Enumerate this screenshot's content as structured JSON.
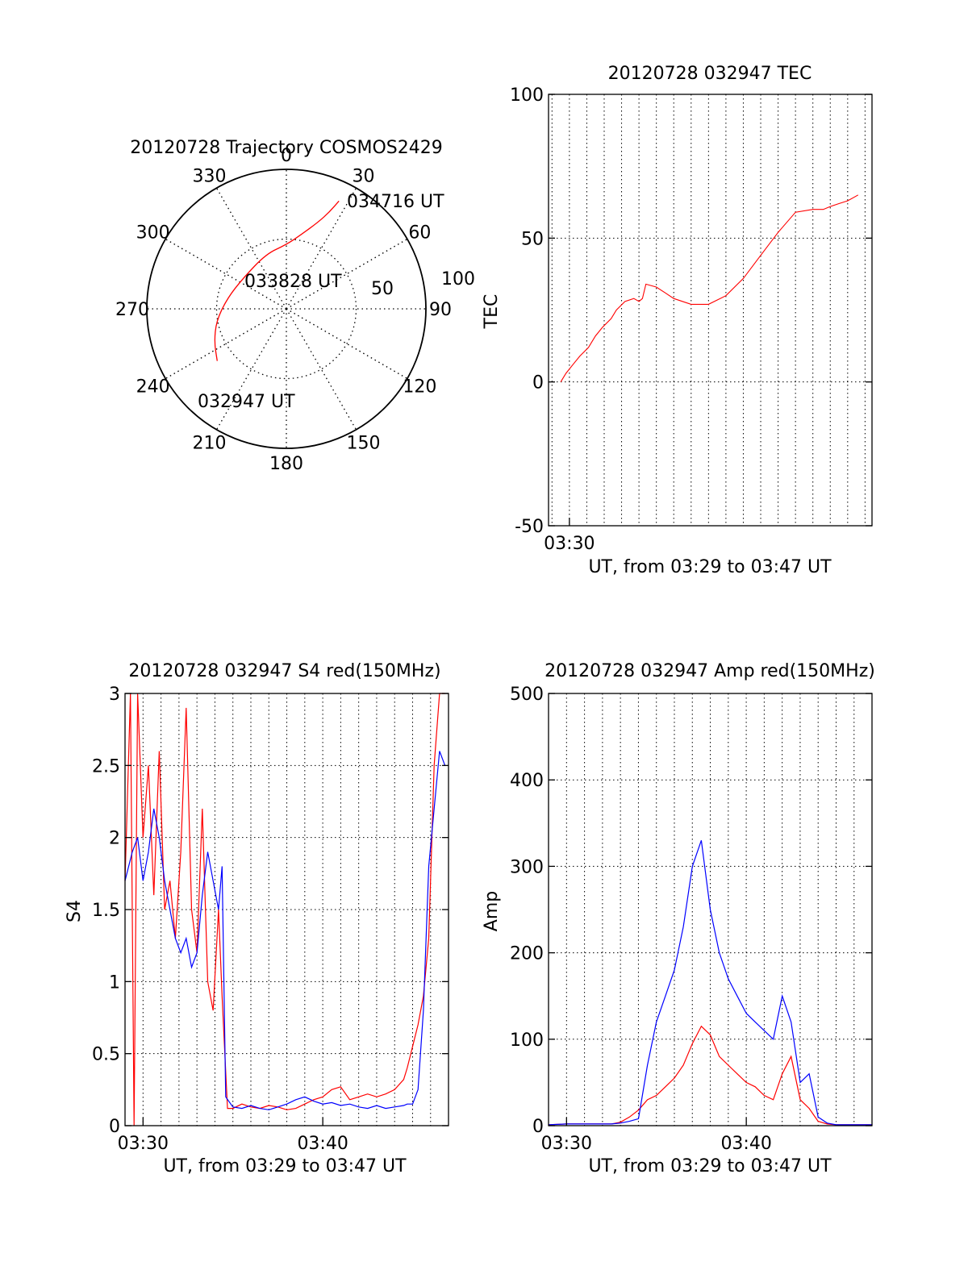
{
  "colors": {
    "red": "#ff0000",
    "blue": "#0000ff",
    "axis": "#000000",
    "grid": "#000000"
  },
  "chart_data": [
    {
      "type": "polar",
      "title": "20120728 Trajectory COSMOS2429",
      "azimuth_ticks": [
        0,
        30,
        60,
        90,
        120,
        150,
        180,
        210,
        240,
        270,
        300,
        330
      ],
      "azimuth_labels": [
        "0",
        "30",
        "60",
        "90",
        "120",
        "150",
        "180",
        "210",
        "240",
        "270",
        "300",
        "330"
      ],
      "radial_labels": [
        "50",
        "100"
      ],
      "radial_ticks": [
        0,
        50,
        100
      ],
      "rmax": 100,
      "trajectory": {
        "points": [
          {
            "az": 233,
            "r": 62
          },
          {
            "az": 245,
            "r": 57
          },
          {
            "az": 260,
            "r": 51
          },
          {
            "az": 280,
            "r": 43
          },
          {
            "az": 305,
            "r": 38
          },
          {
            "az": 340,
            "r": 42
          },
          {
            "az": 360,
            "r": 46
          },
          {
            "az": 372,
            "r": 55
          },
          {
            "az": 380,
            "r": 66
          },
          {
            "az": 384,
            "r": 76
          },
          {
            "az": 386,
            "r": 86
          }
        ],
        "labels": [
          "032947 UT",
          "033828 UT",
          "034716 UT"
        ]
      }
    },
    {
      "type": "line",
      "title": "20120728 032947 TEC",
      "xlabel": "UT, from 03:29 to 03:47 UT",
      "ylabel": "TEC",
      "xlim": [
        3.48,
        3.79
      ],
      "ylim": [
        -50,
        100
      ],
      "yticks": [
        -50,
        0,
        50,
        100
      ],
      "xtick_labels": [
        {
          "x": 3.5,
          "label": "03:30"
        }
      ],
      "grid_x_step_min": 1,
      "series": [
        {
          "color": "red",
          "x": [
            3.4917,
            3.4967,
            3.5033,
            3.51,
            3.5183,
            3.525,
            3.5317,
            3.54,
            3.545,
            3.5533,
            3.5617,
            3.5667,
            3.57,
            3.5733,
            3.5833,
            3.5917,
            3.6,
            3.6083,
            3.6167,
            3.6333,
            3.65,
            3.6667,
            3.6833,
            3.7,
            3.7167,
            3.7333,
            3.7433,
            3.75,
            3.7583,
            3.7667,
            3.7767
          ],
          "y": [
            0,
            3,
            6,
            9,
            12,
            16,
            19,
            22,
            25,
            28,
            29,
            28,
            29,
            34,
            33,
            31,
            29,
            28,
            27,
            27,
            30,
            36,
            44,
            52,
            59,
            60,
            60,
            61,
            62,
            63,
            65
          ]
        }
      ]
    },
    {
      "type": "line",
      "title": "20120728 032947 S4 red(150MHz)",
      "xlabel": "UT, from 03:29 to 03:47 UT",
      "ylabel": "S4",
      "xlim": [
        3.4833,
        3.7833
      ],
      "ylim": [
        0,
        3
      ],
      "yticks": [
        0,
        0.5,
        1,
        1.5,
        2,
        2.5,
        3
      ],
      "ytick_labels": [
        "0",
        "0.5",
        "1",
        "1.5",
        "2",
        "2.5",
        "3"
      ],
      "xtick_labels": [
        {
          "x": 3.5,
          "label": "03:30"
        },
        {
          "x": 3.6667,
          "label": "03:40"
        }
      ],
      "grid_x_step_min": 1,
      "series": [
        {
          "name": "red",
          "color": "red",
          "x": [
            3.4833,
            3.4883,
            3.4917,
            3.495,
            3.5,
            3.505,
            3.51,
            3.515,
            3.52,
            3.525,
            3.53,
            3.535,
            3.54,
            3.545,
            3.55,
            3.555,
            3.56,
            3.565,
            3.57,
            3.5733,
            3.5783,
            3.5833,
            3.5917,
            3.6,
            3.6083,
            3.6167,
            3.625,
            3.6333,
            3.6417,
            3.65,
            3.6583,
            3.6667,
            3.675,
            3.6833,
            3.6917,
            3.7,
            3.7083,
            3.7167,
            3.725,
            3.7333,
            3.7417,
            3.745,
            3.75,
            3.755,
            3.76,
            3.765,
            3.77,
            3.775,
            3.78
          ],
          "y": [
            1.7,
            3.0,
            0.0,
            3.0,
            2.0,
            2.5,
            1.6,
            2.6,
            1.5,
            1.7,
            1.3,
            1.9,
            2.9,
            1.5,
            1.2,
            2.2,
            1.0,
            0.8,
            1.5,
            0.9,
            0.12,
            0.12,
            0.15,
            0.13,
            0.12,
            0.14,
            0.13,
            0.11,
            0.12,
            0.15,
            0.18,
            0.2,
            0.25,
            0.27,
            0.18,
            0.2,
            0.22,
            0.2,
            0.22,
            0.25,
            0.32,
            0.4,
            0.55,
            0.7,
            0.9,
            1.3,
            2.5,
            3.0,
            3.0
          ]
        },
        {
          "name": "blue",
          "color": "blue",
          "x": [
            3.4833,
            3.49,
            3.495,
            3.5,
            3.505,
            3.51,
            3.515,
            3.52,
            3.525,
            3.53,
            3.535,
            3.54,
            3.545,
            3.55,
            3.555,
            3.56,
            3.565,
            3.57,
            3.5733,
            3.5767,
            3.5833,
            3.5917,
            3.6,
            3.6083,
            3.6167,
            3.625,
            3.6333,
            3.6417,
            3.65,
            3.6583,
            3.6667,
            3.675,
            3.6833,
            3.6917,
            3.7,
            3.7083,
            3.7167,
            3.725,
            3.7333,
            3.7417,
            3.745,
            3.75,
            3.755,
            3.76,
            3.765,
            3.77,
            3.775,
            3.78
          ],
          "y": [
            1.7,
            1.9,
            2.0,
            1.7,
            1.9,
            2.2,
            2.0,
            1.7,
            1.5,
            1.3,
            1.2,
            1.3,
            1.1,
            1.2,
            1.6,
            1.9,
            1.7,
            1.5,
            1.8,
            0.2,
            0.13,
            0.12,
            0.14,
            0.12,
            0.11,
            0.13,
            0.15,
            0.18,
            0.2,
            0.17,
            0.15,
            0.16,
            0.14,
            0.15,
            0.13,
            0.12,
            0.14,
            0.12,
            0.13,
            0.14,
            0.15,
            0.15,
            0.25,
            0.8,
            1.8,
            2.2,
            2.6,
            2.5
          ]
        }
      ]
    },
    {
      "type": "line",
      "title": "20120728 032947 Amp red(150MHz)",
      "xlabel": "UT, from 03:29 to 03:47 UT",
      "ylabel": "Amp",
      "xlim": [
        3.4833,
        3.7833
      ],
      "ylim": [
        0,
        500
      ],
      "yticks": [
        0,
        100,
        200,
        300,
        400,
        500
      ],
      "xtick_labels": [
        {
          "x": 3.5,
          "label": "03:30"
        },
        {
          "x": 3.6667,
          "label": "03:40"
        }
      ],
      "grid_x_step_min": 1,
      "series": [
        {
          "name": "red",
          "color": "red",
          "x": [
            3.4833,
            3.5,
            3.5417,
            3.55,
            3.5583,
            3.5667,
            3.575,
            3.5833,
            3.5917,
            3.6,
            3.6083,
            3.6167,
            3.625,
            3.6333,
            3.6417,
            3.65,
            3.6583,
            3.6667,
            3.675,
            3.6833,
            3.6917,
            3.7,
            3.7083,
            3.7167,
            3.725,
            3.7333,
            3.7417,
            3.75,
            3.7833
          ],
          "y": [
            1,
            2,
            2,
            4,
            10,
            18,
            30,
            35,
            45,
            55,
            70,
            95,
            115,
            105,
            80,
            70,
            60,
            50,
            45,
            35,
            30,
            60,
            80,
            30,
            20,
            5,
            2,
            1,
            1
          ]
        },
        {
          "name": "blue",
          "color": "blue",
          "x": [
            3.4833,
            3.5,
            3.5417,
            3.55,
            3.5583,
            3.5667,
            3.575,
            3.5833,
            3.5917,
            3.6,
            3.6083,
            3.6167,
            3.625,
            3.6333,
            3.6417,
            3.65,
            3.6583,
            3.6667,
            3.675,
            3.6833,
            3.6917,
            3.7,
            3.7083,
            3.7167,
            3.725,
            3.7333,
            3.7417,
            3.75,
            3.7833
          ],
          "y": [
            1,
            2,
            2,
            3,
            5,
            8,
            70,
            120,
            150,
            180,
            230,
            300,
            330,
            250,
            200,
            170,
            150,
            130,
            120,
            110,
            100,
            150,
            120,
            50,
            60,
            10,
            3,
            1,
            1
          ]
        }
      ]
    }
  ]
}
